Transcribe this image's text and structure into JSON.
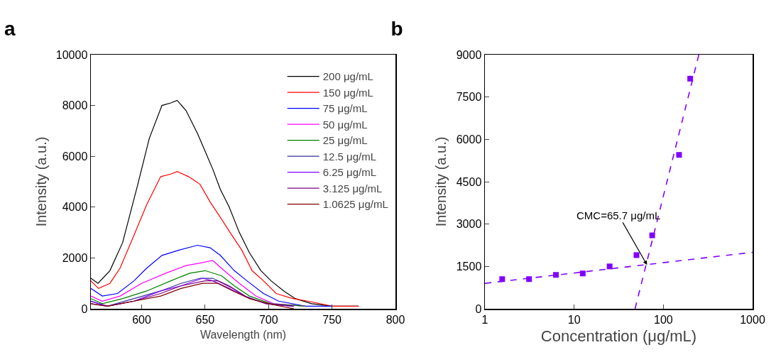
{
  "chart_data": [
    {
      "type": "line",
      "title": "a",
      "xlabel": "Wavelength (nm)",
      "ylabel": "Intensity (a.u.)",
      "xlim": [
        560,
        800
      ],
      "xticks": [
        600,
        650,
        700,
        750,
        800
      ],
      "ylim": [
        0,
        10000
      ],
      "yticks": [
        0,
        2000,
        4000,
        6000,
        8000,
        10000
      ],
      "legend": "top right",
      "series": [
        {
          "name": "200 μg/mL",
          "color": "#000000",
          "x": [
            560,
            565.6,
            575,
            585,
            597,
            606,
            616,
            623,
            628,
            635,
            644,
            650,
            656,
            662,
            669,
            677,
            685,
            694,
            702,
            712,
            721,
            734,
            750,
            771
          ],
          "values": [
            1200,
            1000,
            1500,
            2600,
            4900,
            6700,
            8000,
            8100,
            8200,
            7800,
            6900,
            6200,
            5500,
            4700,
            4000,
            3000,
            2200,
            1500,
            1100,
            700,
            400,
            200,
            100,
            100
          ]
        },
        {
          "name": "150 μg/mL",
          "color": "#ff0000",
          "x": [
            560,
            566,
            575,
            583,
            594,
            604,
            615,
            623,
            628,
            637,
            646,
            654,
            662,
            671,
            679,
            687,
            696,
            706,
            719,
            731,
            750,
            771
          ],
          "values": [
            1100,
            800,
            1000,
            1600,
            2900,
            4100,
            5200,
            5300,
            5400,
            5200,
            4900,
            4200,
            3600,
            2900,
            2300,
            1500,
            1100,
            600,
            400,
            300,
            100,
            100
          ]
        },
        {
          "name": "75 μg/mL",
          "color": "#0000ff",
          "x": [
            560,
            569,
            581,
            594,
            604,
            616,
            629,
            644,
            654,
            662,
            673,
            683,
            696,
            708,
            729,
            750
          ],
          "values": [
            800,
            500,
            600,
            1100,
            1600,
            2100,
            2300,
            2500,
            2400,
            2100,
            1500,
            1100,
            600,
            300,
            100,
            100
          ]
        },
        {
          "name": "50 μg/mL",
          "color": "#ff00ff",
          "x": [
            560,
            569,
            583,
            600,
            619,
            635,
            646,
            656,
            665,
            677,
            690,
            704,
            729
          ],
          "values": [
            500,
            300,
            500,
            1000,
            1400,
            1700,
            1800,
            1900,
            1500,
            1000,
            500,
            200,
            100
          ]
        },
        {
          "name": "25 μg/mL",
          "color": "#008000",
          "x": [
            560,
            569,
            585,
            604,
            623,
            638,
            650,
            663,
            673,
            685,
            702,
            729
          ],
          "values": [
            400,
            200,
            400,
            700,
            1100,
            1400,
            1500,
            1300,
            900,
            500,
            200,
            100
          ]
        },
        {
          "name": "12.5 μg/mL",
          "color": "#333399",
          "x": [
            560,
            573,
            594,
            615,
            631,
            646,
            656,
            669,
            681,
            698,
            719
          ],
          "values": [
            300,
            100,
            400,
            700,
            1000,
            1200,
            1200,
            900,
            500,
            200,
            100
          ]
        },
        {
          "name": "6.25 μg/mL",
          "color": "#8000ff",
          "x": [
            560,
            573,
            594,
            615,
            631,
            648,
            656,
            669,
            681,
            698,
            719
          ],
          "values": [
            300,
            100,
            300,
            700,
            900,
            1200,
            1100,
            800,
            500,
            200,
            100
          ]
        },
        {
          "name": "3.125 μg/mL",
          "color": "#800080",
          "x": [
            560,
            573,
            594,
            615,
            631,
            650,
            660,
            672,
            685,
            700,
            720
          ],
          "values": [
            200,
            100,
            300,
            600,
            900,
            1100,
            1100,
            800,
            400,
            200,
            100
          ]
        },
        {
          "name": "1.0625 μg/mL",
          "color": "#800000",
          "x": [
            560,
            573,
            594,
            615,
            631,
            648,
            660,
            672,
            685,
            700,
            720
          ],
          "values": [
            200,
            100,
            300,
            500,
            800,
            1000,
            1000,
            700,
            400,
            200,
            0
          ]
        }
      ]
    },
    {
      "type": "scatter",
      "title": "b",
      "xlabel": "Concentration (μg/mL)",
      "ylabel": "Intensity (a.u.)",
      "log": "x",
      "xlim": [
        1,
        1000
      ],
      "xticks": [
        1,
        10,
        100,
        1000
      ],
      "ylim": [
        0,
        9000
      ],
      "yticks": [
        0,
        1500,
        3000,
        4500,
        6000,
        7500,
        9000
      ],
      "marker": "square",
      "annotations": [
        {
          "text": "CMC=65.7 μg/mL",
          "x": 65.7,
          "y": 1550
        }
      ],
      "series": [
        {
          "color": "#8000ff",
          "x": [
            1.5625,
            3.125,
            6.25,
            12.5,
            25,
            50,
            75,
            150,
            200
          ],
          "values": [
            1050,
            1050,
            1200,
            1250,
            1500,
            1900,
            2600,
            5450,
            8150
          ]
        },
        {
          "type": "line",
          "line_style": "dashed",
          "marker": "none",
          "color": "#8000ff",
          "x": [
            1,
            1000
          ],
          "values": [
            900,
            2000
          ]
        },
        {
          "type": "line",
          "line_style": "dashed",
          "marker": "none",
          "color": "#8000ff",
          "x": [
            48.2,
            250
          ],
          "values": [
            0,
            9000
          ]
        }
      ]
    }
  ]
}
